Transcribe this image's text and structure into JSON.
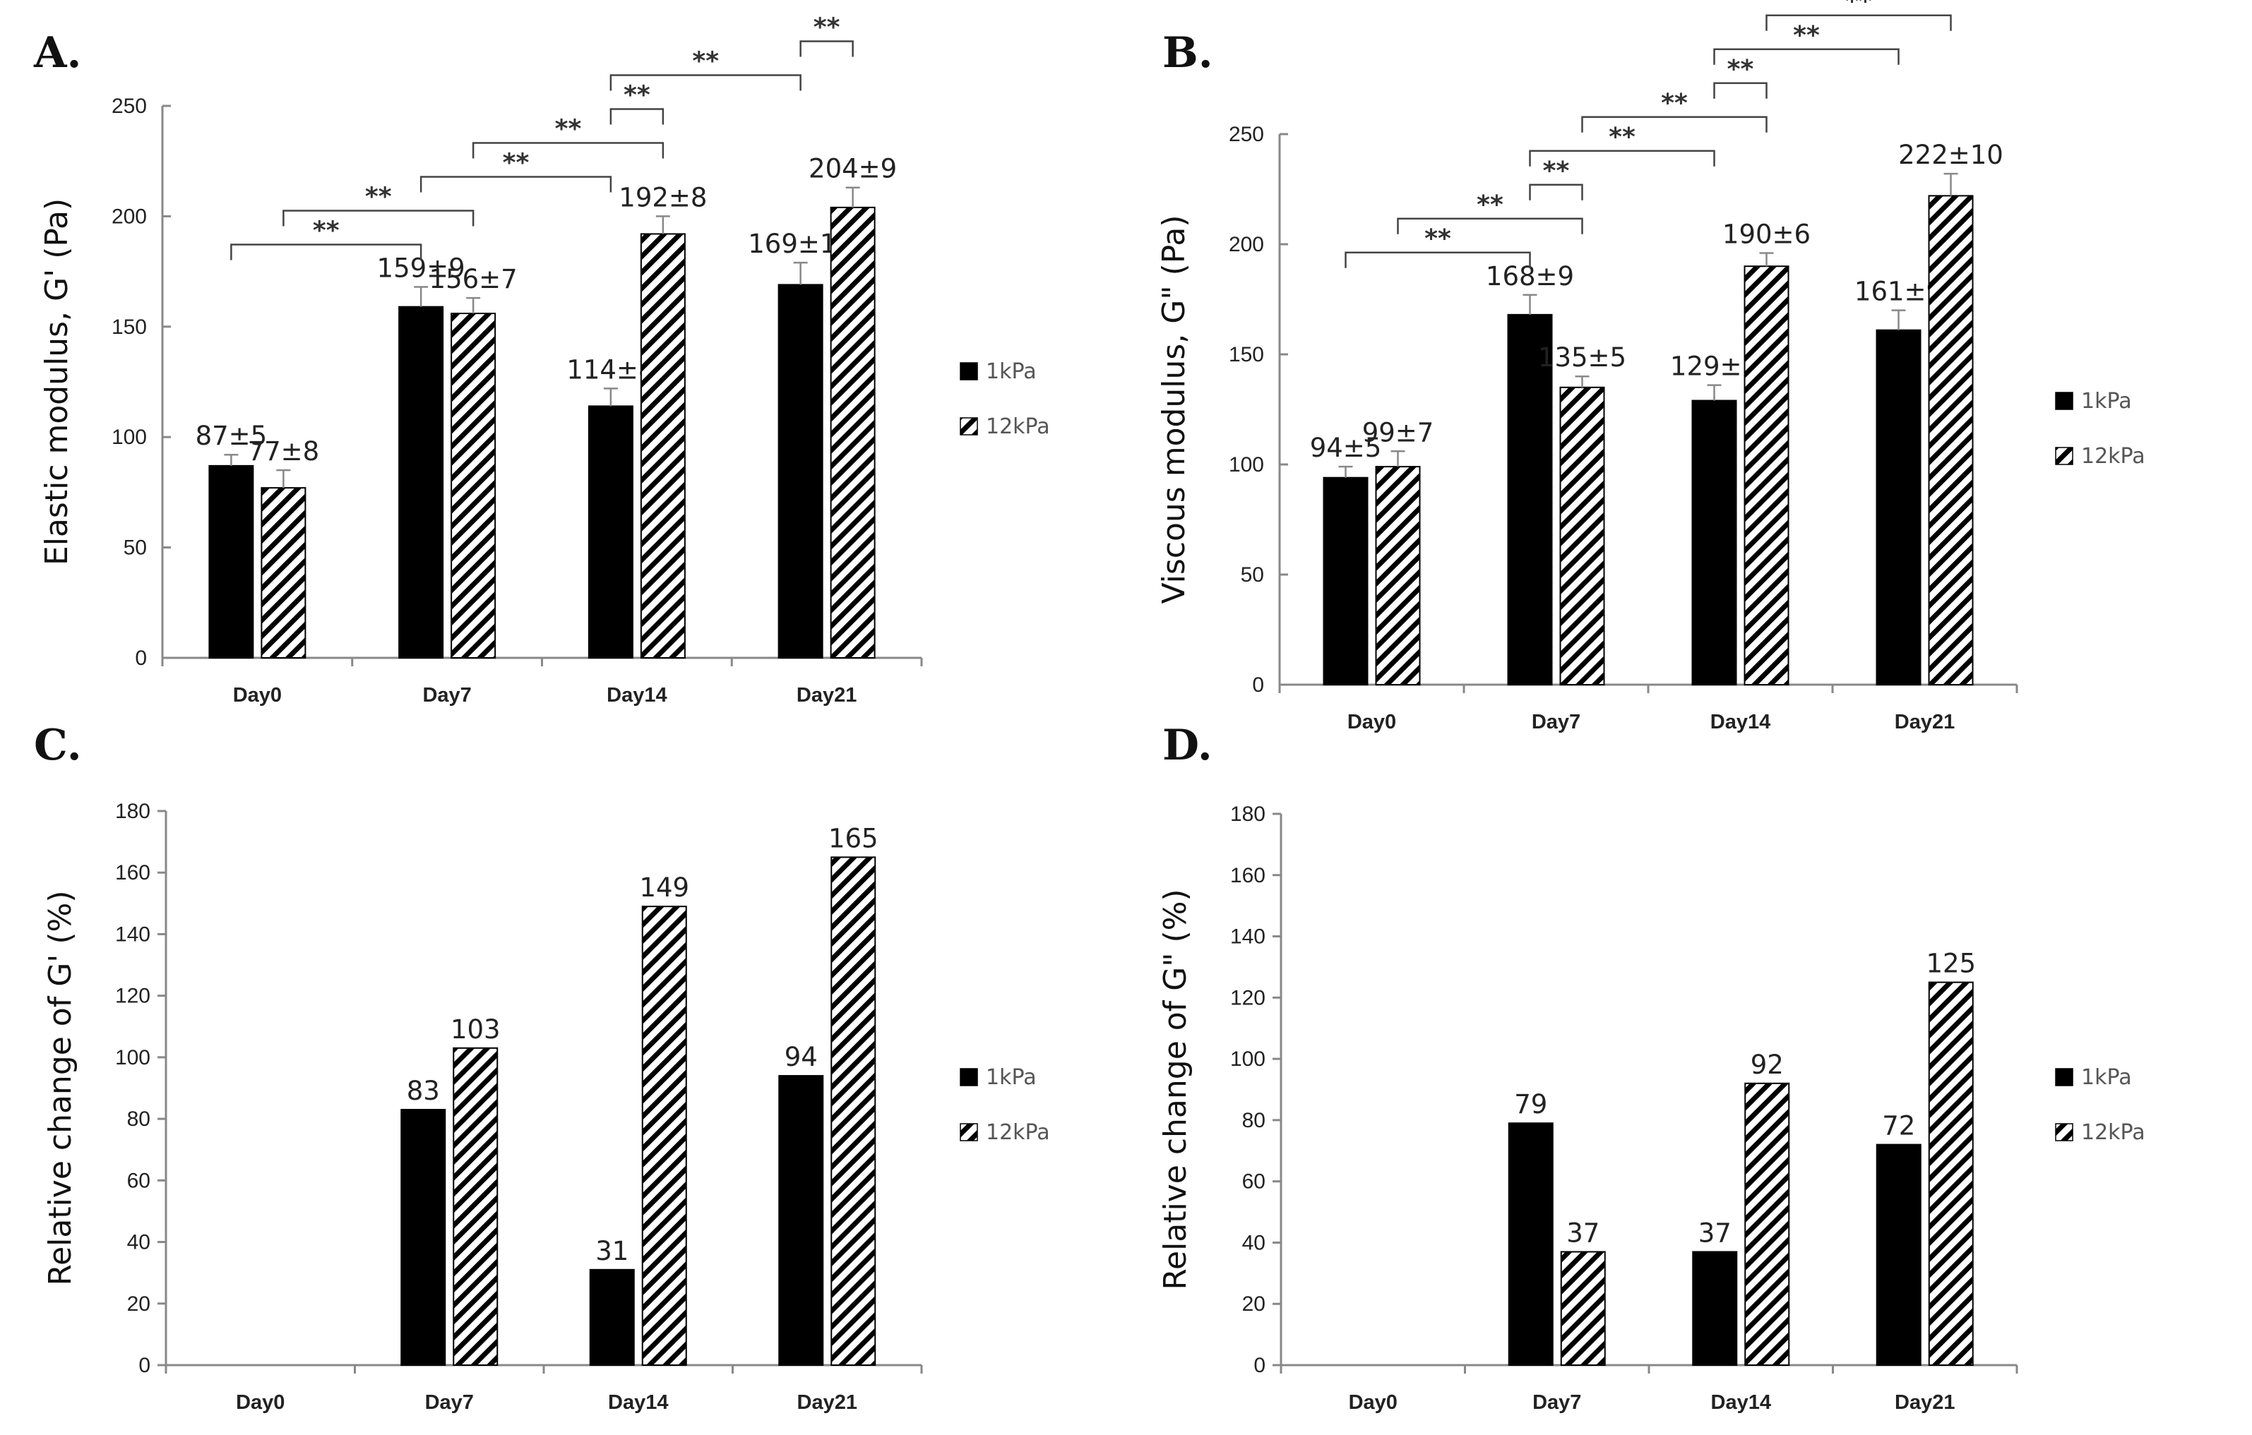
{
  "colors": {
    "series_1kPa": "#000000",
    "series_12kPa_hatch": "#000000",
    "axis": "#888888",
    "bracket": "#444444"
  },
  "chart_data": [
    {
      "id": "A",
      "panel_label": "A.",
      "type": "bar",
      "categories": [
        "Day0",
        "Day7",
        "Day14",
        "Day21"
      ],
      "series": [
        {
          "name": "1kPa",
          "pattern": "solid",
          "values": [
            87,
            159,
            114,
            169
          ],
          "errors": [
            5,
            9,
            8,
            10
          ],
          "labels": [
            "87±5",
            "159±9",
            "114±8",
            "169±10"
          ]
        },
        {
          "name": "12kPa",
          "pattern": "hatch",
          "values": [
            77,
            156,
            192,
            204
          ],
          "errors": [
            8,
            7,
            8,
            9
          ],
          "labels": [
            "77±8",
            "156±7",
            "192±8",
            "204±9"
          ]
        }
      ],
      "ylabel": "Elastic modulus, G' (Pa)",
      "ylim": [
        0,
        250
      ],
      "yticks": [
        0,
        50,
        100,
        150,
        200,
        250
      ],
      "legend_position": "right",
      "significance": [
        {
          "from": [
            0,
            0
          ],
          "to": [
            1,
            0
          ],
          "label": "**"
        },
        {
          "from": [
            0,
            1
          ],
          "to": [
            1,
            1
          ],
          "label": "**"
        },
        {
          "from": [
            1,
            0
          ],
          "to": [
            2,
            0
          ],
          "label": "**"
        },
        {
          "from": [
            1,
            1
          ],
          "to": [
            2,
            1
          ],
          "label": "**"
        },
        {
          "from": [
            2,
            0
          ],
          "to": [
            2,
            1
          ],
          "label": "**"
        },
        {
          "from": [
            2,
            0
          ],
          "to": [
            3,
            0
          ],
          "label": "**"
        },
        {
          "from": [
            3,
            0
          ],
          "to": [
            3,
            1
          ],
          "label": "**"
        }
      ]
    },
    {
      "id": "B",
      "panel_label": "B.",
      "type": "bar",
      "categories": [
        "Day0",
        "Day7",
        "Day14",
        "Day21"
      ],
      "series": [
        {
          "name": "1kPa",
          "pattern": "solid",
          "values": [
            94,
            168,
            129,
            161
          ],
          "errors": [
            5,
            9,
            7,
            9
          ],
          "labels": [
            "94±5",
            "168±9",
            "129±7",
            "161±9"
          ]
        },
        {
          "name": "12kPa",
          "pattern": "hatch",
          "values": [
            99,
            135,
            190,
            222
          ],
          "errors": [
            7,
            5,
            6,
            10
          ],
          "labels": [
            "99±7",
            "135±5",
            "190±6",
            "222±10"
          ]
        }
      ],
      "ylabel": "Viscous modulus, G\" (Pa)",
      "ylim": [
        0,
        250
      ],
      "yticks": [
        0,
        50,
        100,
        150,
        200,
        250
      ],
      "legend_position": "right",
      "significance": [
        {
          "from": [
            0,
            0
          ],
          "to": [
            1,
            0
          ],
          "label": "**"
        },
        {
          "from": [
            0,
            1
          ],
          "to": [
            1,
            1
          ],
          "label": "**"
        },
        {
          "from": [
            1,
            0
          ],
          "to": [
            1,
            1
          ],
          "label": "**"
        },
        {
          "from": [
            1,
            0
          ],
          "to": [
            2,
            0
          ],
          "label": "**"
        },
        {
          "from": [
            1,
            1
          ],
          "to": [
            2,
            1
          ],
          "label": "**"
        },
        {
          "from": [
            2,
            0
          ],
          "to": [
            2,
            1
          ],
          "label": "**"
        },
        {
          "from": [
            2,
            0
          ],
          "to": [
            3,
            0
          ],
          "label": "**"
        },
        {
          "from": [
            2,
            1
          ],
          "to": [
            3,
            1
          ],
          "label": "**"
        },
        {
          "from": [
            3,
            0
          ],
          "to": [
            3,
            1
          ],
          "label": "**"
        }
      ]
    },
    {
      "id": "C",
      "panel_label": "C.",
      "type": "bar",
      "categories": [
        "Day0",
        "Day7",
        "Day14",
        "Day21"
      ],
      "series": [
        {
          "name": "1kPa",
          "pattern": "solid",
          "values": [
            0,
            83,
            31,
            94
          ],
          "labels": [
            "",
            "83",
            "31",
            "94"
          ]
        },
        {
          "name": "12kPa",
          "pattern": "hatch",
          "values": [
            0,
            103,
            149,
            165
          ],
          "labels": [
            "",
            "103",
            "149",
            "165"
          ]
        }
      ],
      "ylabel": "Relative change of G' (%)",
      "ylim": [
        0,
        180
      ],
      "yticks": [
        0,
        20,
        40,
        60,
        80,
        100,
        120,
        140,
        160,
        180
      ],
      "legend_position": "right",
      "significance": []
    },
    {
      "id": "D",
      "panel_label": "D.",
      "type": "bar",
      "categories": [
        "Day0",
        "Day7",
        "Day14",
        "Day21"
      ],
      "series": [
        {
          "name": "1kPa",
          "pattern": "solid",
          "values": [
            0,
            79,
            37,
            72
          ],
          "labels": [
            "",
            "79",
            "37",
            "72"
          ]
        },
        {
          "name": "12kPa",
          "pattern": "hatch",
          "values": [
            0,
            37,
            92,
            125
          ],
          "labels": [
            "",
            "37",
            "92",
            "125"
          ]
        }
      ],
      "ylabel": "Relative change of G\" (%)",
      "ylim": [
        0,
        180
      ],
      "yticks": [
        0,
        20,
        40,
        60,
        80,
        100,
        120,
        140,
        160,
        180
      ],
      "legend_position": "right",
      "significance": []
    }
  ]
}
